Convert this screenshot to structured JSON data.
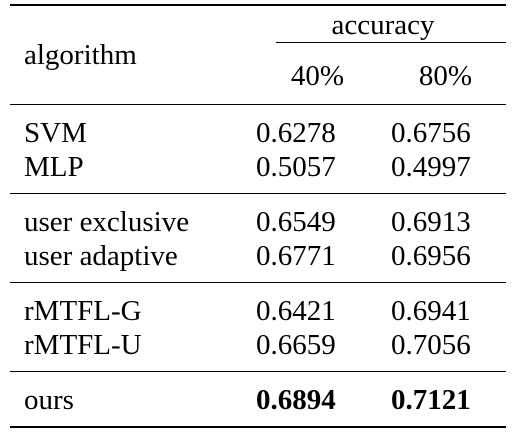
{
  "table": {
    "header": {
      "algorithm_label": "algorithm",
      "accuracy_label": "accuracy",
      "columns": [
        "40%",
        "80%"
      ]
    },
    "groups": [
      {
        "rows": [
          {
            "name": "SVM",
            "v40": "0.6278",
            "v80": "0.6756"
          },
          {
            "name": "MLP",
            "v40": "0.5057",
            "v80": "0.4997"
          }
        ]
      },
      {
        "rows": [
          {
            "name": "user exclusive",
            "v40": "0.6549",
            "v80": "0.6913"
          },
          {
            "name": "user adaptive",
            "v40": "0.6771",
            "v80": "0.6956"
          }
        ]
      },
      {
        "rows": [
          {
            "name": "rMTFL-G",
            "v40": "0.6421",
            "v80": "0.6941"
          },
          {
            "name": "rMTFL-U",
            "v40": "0.6659",
            "v80": "0.7056"
          }
        ]
      },
      {
        "rows": [
          {
            "name": "ours",
            "v40": "0.6894",
            "v80": "0.7121",
            "bold_values": true
          }
        ]
      }
    ]
  }
}
